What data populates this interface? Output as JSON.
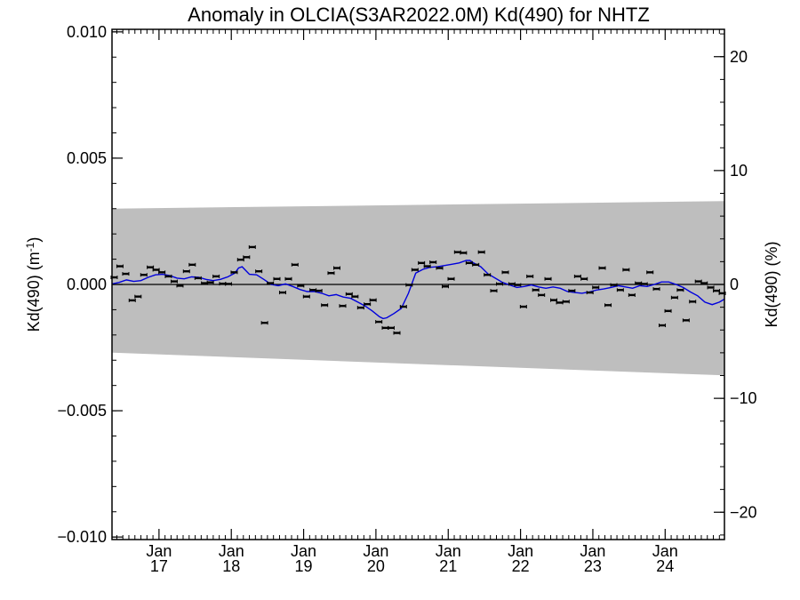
{
  "chart_data": {
    "type": "scatter",
    "title": "Anomaly in OLCIA(S3AR2022.0M) Kd(490) for NHTZ",
    "ylabel_left": "Kd(490) (m",
    "ylabel_left_sup": "-1",
    "ylabel_left_close": ")",
    "ylabel_right": "Kd(490) (%)",
    "ylim": [
      -0.0101,
      0.0101
    ],
    "y2lim": [
      -22.4,
      22.4
    ],
    "xlim": [
      2016.35,
      2024.82
    ],
    "grid": false,
    "y_ticks": [
      {
        "value": -0.01,
        "label": "−0.010"
      },
      {
        "value": -0.005,
        "label": "−0.005"
      },
      {
        "value": 0.0,
        "label": "0.000"
      },
      {
        "value": 0.005,
        "label": "0.005"
      },
      {
        "value": 0.01,
        "label": "0.010"
      }
    ],
    "y2_ticks": [
      {
        "value": -20,
        "label": "−20"
      },
      {
        "value": -10,
        "label": "−10"
      },
      {
        "value": 0,
        "label": "0"
      },
      {
        "value": 10,
        "label": "10"
      },
      {
        "value": 20,
        "label": "20"
      }
    ],
    "x_ticks": [
      {
        "value": 2017.0,
        "month": "Jan",
        "year": "17"
      },
      {
        "value": 2018.0,
        "month": "Jan",
        "year": "18"
      },
      {
        "value": 2019.0,
        "month": "Jan",
        "year": "19"
      },
      {
        "value": 2020.0,
        "month": "Jan",
        "year": "20"
      },
      {
        "value": 2021.0,
        "month": "Jan",
        "year": "21"
      },
      {
        "value": 2022.0,
        "month": "Jan",
        "year": "22"
      },
      {
        "value": 2023.0,
        "month": "Jan",
        "year": "23"
      },
      {
        "value": 2024.0,
        "month": "Jan",
        "year": "24"
      }
    ],
    "uncertainty_band": {
      "x": [
        2016.35,
        2024.82
      ],
      "upper": [
        0.003,
        0.0033
      ],
      "lower": [
        -0.0027,
        -0.0036
      ],
      "color": "#bebebe"
    },
    "zero_line": 0.0,
    "series": [
      {
        "kind": "monthly_points",
        "color": "#000000",
        "x": [
          2016.38,
          2016.46,
          2016.54,
          2016.63,
          2016.71,
          2016.79,
          2016.88,
          2016.96,
          2017.04,
          2017.13,
          2017.21,
          2017.29,
          2017.38,
          2017.46,
          2017.54,
          2017.63,
          2017.71,
          2017.79,
          2017.88,
          2017.96,
          2018.04,
          2018.13,
          2018.21,
          2018.29,
          2018.38,
          2018.46,
          2018.54,
          2018.63,
          2018.71,
          2018.79,
          2018.88,
          2018.96,
          2019.04,
          2019.13,
          2019.21,
          2019.29,
          2019.38,
          2019.46,
          2019.54,
          2019.63,
          2019.71,
          2019.79,
          2019.88,
          2019.96,
          2020.04,
          2020.13,
          2020.21,
          2020.29,
          2020.38,
          2020.46,
          2020.54,
          2020.63,
          2020.71,
          2020.79,
          2020.88,
          2020.96,
          2021.04,
          2021.13,
          2021.21,
          2021.29,
          2021.38,
          2021.46,
          2021.54,
          2021.63,
          2021.71,
          2021.79,
          2021.88,
          2021.96,
          2022.04,
          2022.13,
          2022.21,
          2022.29,
          2022.38,
          2022.46,
          2022.54,
          2022.63,
          2022.71,
          2022.79,
          2022.88,
          2022.96,
          2023.04,
          2023.13,
          2023.21,
          2023.29,
          2023.38,
          2023.46,
          2023.54,
          2023.63,
          2023.71,
          2023.79,
          2023.88,
          2023.96,
          2024.04,
          2024.13,
          2024.21,
          2024.29,
          2024.38,
          2024.46,
          2024.54,
          2024.63,
          2024.71,
          2024.79
        ],
        "y": [
          0.00028,
          0.00072,
          0.00042,
          -0.00063,
          -0.00048,
          0.00038,
          0.00068,
          0.00058,
          0.00048,
          0.00032,
          0.00012,
          -5e-05,
          0.00052,
          0.00078,
          0.00025,
          5e-05,
          8e-05,
          0.00032,
          3e-05,
          2e-05,
          0.00048,
          0.00098,
          0.00108,
          0.00148,
          0.00052,
          -0.00152,
          5e-05,
          0.00022,
          -0.00032,
          0.00022,
          0.00078,
          -5e-05,
          -0.00048,
          -0.00022,
          -0.00025,
          -0.00082,
          0.00045,
          0.00065,
          -0.00085,
          -0.00038,
          -0.00048,
          -0.00092,
          -0.00078,
          -0.00062,
          -0.00148,
          -0.00172,
          -0.00172,
          -0.00192,
          -0.00088,
          -2e-05,
          0.00058,
          0.00085,
          0.00072,
          0.00088,
          0.00065,
          -8e-05,
          0.00022,
          0.00128,
          0.00125,
          0.00085,
          0.00078,
          0.00128,
          0.00038,
          -0.00025,
          2e-05,
          0.00048,
          2e-05,
          -2e-05,
          -0.00088,
          0.00032,
          -0.00022,
          -0.00042,
          0.00022,
          -0.00062,
          -0.00072,
          -0.00068,
          -0.00025,
          0.00032,
          0.00022,
          -0.00032,
          -0.00012,
          0.00065,
          -0.00082,
          -2e-05,
          -0.00022,
          0.00058,
          -0.00042,
          5e-05,
          2e-05,
          0.00048,
          -0.00018,
          -0.00162,
          -0.00105,
          -0.00052,
          -0.00022,
          -0.00142,
          -0.00068,
          0.00012,
          5e-05,
          -0.00012,
          -0.00025,
          -0.00035
        ]
      },
      {
        "kind": "running_mean",
        "color": "#0000dd",
        "x": [
          2016.35,
          2016.45,
          2016.55,
          2016.65,
          2016.75,
          2016.85,
          2016.95,
          2017.05,
          2017.15,
          2017.25,
          2017.35,
          2017.45,
          2017.55,
          2017.65,
          2017.75,
          2017.85,
          2017.95,
          2018.05,
          2018.1,
          2018.15,
          2018.25,
          2018.35,
          2018.45,
          2018.55,
          2018.65,
          2018.75,
          2018.85,
          2018.95,
          2019.05,
          2019.15,
          2019.25,
          2019.35,
          2019.45,
          2019.55,
          2019.65,
          2019.75,
          2019.85,
          2019.95,
          2020.05,
          2020.1,
          2020.15,
          2020.25,
          2020.35,
          2020.45,
          2020.55,
          2020.65,
          2020.75,
          2020.85,
          2020.95,
          2021.05,
          2021.15,
          2021.25,
          2021.3,
          2021.35,
          2021.45,
          2021.55,
          2021.65,
          2021.75,
          2021.85,
          2021.95,
          2022.05,
          2022.15,
          2022.25,
          2022.35,
          2022.45,
          2022.55,
          2022.65,
          2022.75,
          2022.85,
          2022.95,
          2023.05,
          2023.15,
          2023.25,
          2023.35,
          2023.45,
          2023.55,
          2023.65,
          2023.75,
          2023.85,
          2023.95,
          2024.05,
          2024.15,
          2024.25,
          2024.35,
          2024.45,
          2024.55,
          2024.65,
          2024.75,
          2024.82
        ],
        "y": [
          2e-05,
          8e-05,
          0.00018,
          0.00012,
          0.00015,
          0.00028,
          0.00038,
          0.0004,
          0.00035,
          0.00025,
          0.00022,
          0.0003,
          0.00028,
          0.0002,
          0.00015,
          0.0002,
          0.0003,
          0.00045,
          0.00065,
          0.0007,
          0.0004,
          0.00038,
          0.0002,
          0.0,
          -5e-05,
          2e-05,
          -8e-05,
          -0.0002,
          -0.00028,
          -0.00028,
          -0.00035,
          -0.00045,
          -0.0004,
          -0.0005,
          -0.00055,
          -0.0007,
          -0.00085,
          -0.00105,
          -0.00128,
          -0.00135,
          -0.00132,
          -0.00115,
          -0.00095,
          -0.00035,
          0.00045,
          0.0006,
          0.00068,
          0.0007,
          0.00075,
          0.0008,
          0.00085,
          0.00095,
          0.00095,
          0.00085,
          0.0007,
          0.00042,
          0.00025,
          8e-05,
          -2e-05,
          -0.00012,
          -8e-05,
          -2e-05,
          -0.0001,
          -0.00015,
          -0.0001,
          -0.00015,
          -0.00028,
          -0.00032,
          -0.00035,
          -0.0003,
          -0.00022,
          -0.00018,
          -0.00012,
          -5e-05,
          -0.0001,
          -0.00015,
          -5e-05,
          -8e-05,
          0.0,
          0.0001,
          0.0001,
          0.0,
          -0.00012,
          -0.0003,
          -0.00045,
          -0.0007,
          -0.0008,
          -0.0007,
          -0.00058
        ]
      }
    ]
  }
}
